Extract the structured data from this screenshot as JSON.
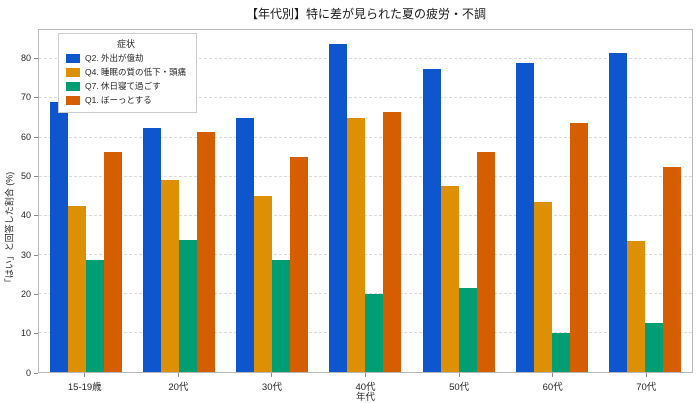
{
  "chart_data": {
    "type": "bar",
    "title": "【年代別】特に差が見られた夏の疲労・不調",
    "xlabel": "年代",
    "ylabel": "「はい」と回答した割合 (%)",
    "legend_title": "症状",
    "legend_position": "upper left",
    "grid": "horizontal dashed",
    "categories": [
      "15-19歳",
      "20代",
      "30代",
      "40代",
      "50代",
      "60代",
      "70代"
    ],
    "series": [
      {
        "name": "Q2. 外出が億劫",
        "color": "#0d56cd",
        "values": [
          69.0,
          62.5,
          65.0,
          84.0,
          77.5,
          79.0,
          81.5
        ]
      },
      {
        "name": "Q4. 睡眠の質の低下・頭痛",
        "color": "#de9005",
        "values": [
          42.5,
          49.0,
          45.0,
          65.0,
          47.5,
          43.5,
          33.5
        ]
      },
      {
        "name": "Q7. 休日寝て過ごす",
        "color": "#029e73",
        "values": [
          28.6,
          33.7,
          28.6,
          20.0,
          21.4,
          10.0,
          12.5
        ]
      },
      {
        "name": "Q1. ぼーっとする",
        "color": "#d55e00",
        "values": [
          56.3,
          61.3,
          55.0,
          66.4,
          56.3,
          63.8,
          52.5
        ]
      }
    ],
    "yticks": [
      0,
      10,
      20,
      30,
      40,
      50,
      60,
      70,
      80
    ],
    "ylim": [
      0,
      87.5
    ]
  }
}
